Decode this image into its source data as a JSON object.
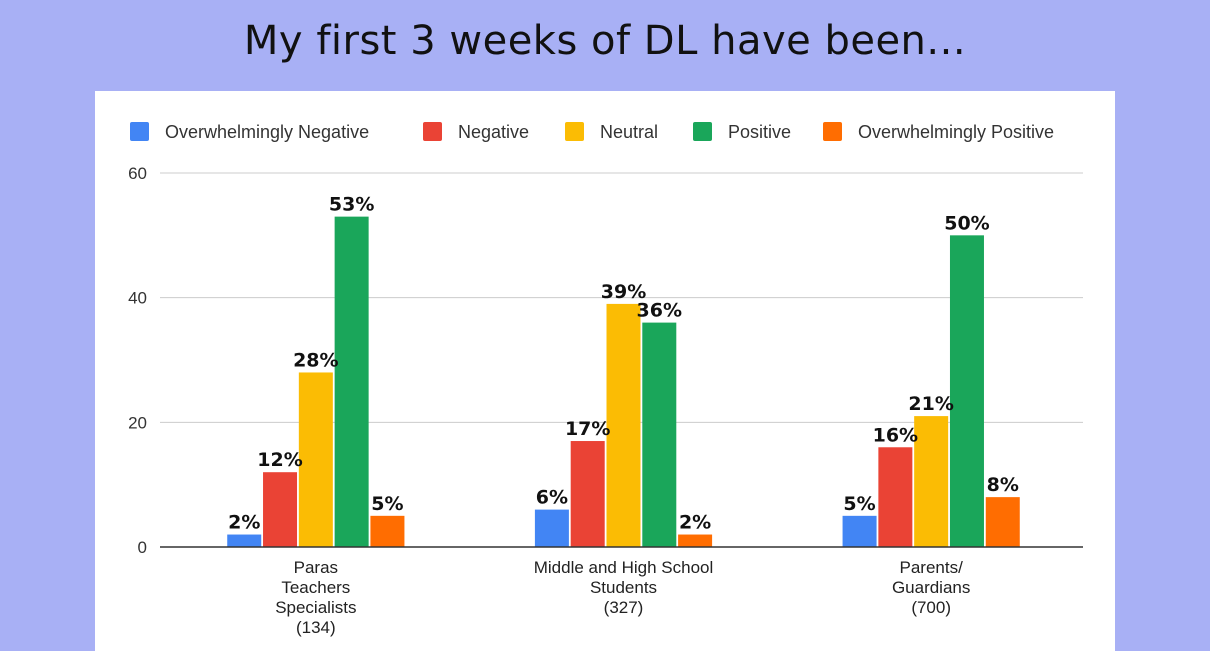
{
  "page": {
    "title": "My first 3 weeks of DL have been..."
  },
  "chart_data": {
    "type": "bar",
    "title": "",
    "xlabel": "",
    "ylabel": "",
    "ylim": [
      0,
      60
    ],
    "yticks": [
      0,
      20,
      40,
      60
    ],
    "grid": true,
    "legend_position": "top",
    "categories": [
      [
        "Paras",
        "Teachers",
        "Specialists",
        "(134)"
      ],
      [
        "Middle and High School",
        "Students",
        "(327)"
      ],
      [
        "Parents/",
        "Guardians",
        "(700)"
      ]
    ],
    "series": [
      {
        "name": "Overwhelmingly Negative",
        "color": "#4285f4",
        "values": [
          2,
          6,
          5
        ],
        "labels": [
          "2%",
          "6%",
          "5%"
        ]
      },
      {
        "name": "Negative",
        "color": "#ea4335",
        "values": [
          12,
          17,
          16
        ],
        "labels": [
          "12%",
          "17%",
          "16%"
        ]
      },
      {
        "name": "Neutral",
        "color": "#fbbc04",
        "values": [
          28,
          39,
          21
        ],
        "labels": [
          "28%",
          "39%",
          "21%"
        ]
      },
      {
        "name": "Positive",
        "color": "#1aa65a",
        "values": [
          53,
          36,
          50
        ],
        "labels": [
          "53%",
          "36%",
          "50%"
        ]
      },
      {
        "name": "Overwhelmingly Positive",
        "color": "#ff6d01",
        "values": [
          5,
          2,
          8
        ],
        "labels": [
          "5%",
          "2%",
          "8%"
        ]
      }
    ]
  }
}
